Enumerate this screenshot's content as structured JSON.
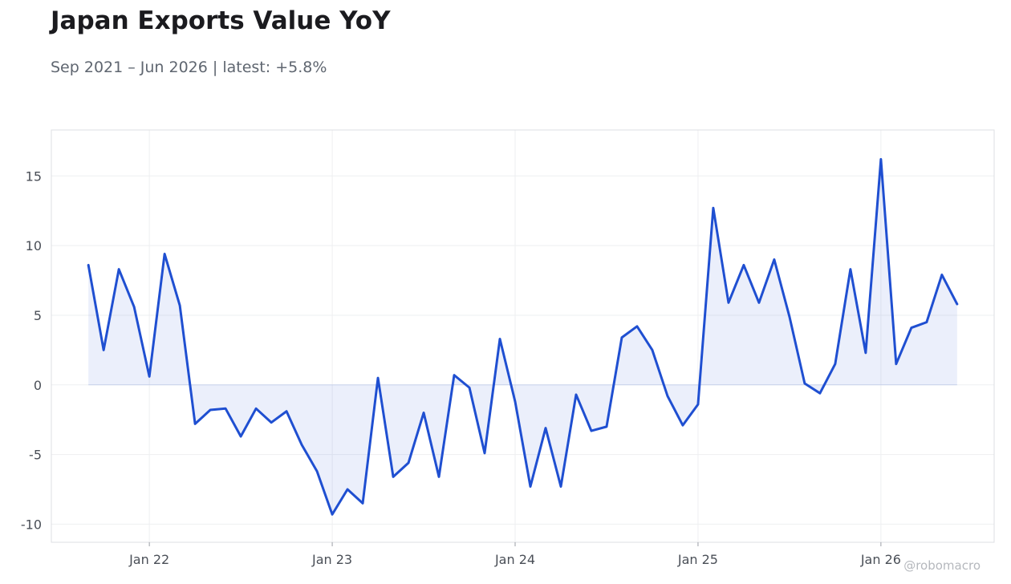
{
  "chart_data": {
    "type": "area",
    "title": "Japan Exports Value YoY",
    "subtitle": "Sep 2021 – Jun 2026 | latest: +5.8%",
    "xlabel": "",
    "ylabel": "",
    "ylim": [
      -11.3,
      18.3
    ],
    "y_ticks": [
      15,
      10,
      5,
      0,
      -5,
      -10
    ],
    "y_tick_labels": [
      "15",
      "10",
      "5",
      "0",
      "-5",
      "-10"
    ],
    "x_ticks": [
      "2022-01",
      "2023-01",
      "2024-01",
      "2025-01",
      "2026-01"
    ],
    "x_tick_labels": [
      "Jan 22",
      "Jan 23",
      "Jan 24",
      "Jan 25",
      "Jan 26"
    ],
    "grid": true,
    "line_color": "#1f4fd1",
    "fill_color": "#1f4fd1",
    "x": [
      "2021-09",
      "2021-10",
      "2021-11",
      "2021-12",
      "2022-01",
      "2022-02",
      "2022-03",
      "2022-04",
      "2022-05",
      "2022-06",
      "2022-07",
      "2022-08",
      "2022-09",
      "2022-10",
      "2022-11",
      "2022-12",
      "2023-01",
      "2023-02",
      "2023-03",
      "2023-04",
      "2023-05",
      "2023-06",
      "2023-07",
      "2023-08",
      "2023-09",
      "2023-10",
      "2023-11",
      "2023-12",
      "2024-01",
      "2024-02",
      "2024-03",
      "2024-04",
      "2024-05",
      "2024-06",
      "2024-07",
      "2024-08",
      "2024-09",
      "2024-10",
      "2024-11",
      "2024-12",
      "2025-01",
      "2025-02",
      "2025-03",
      "2025-04",
      "2025-05",
      "2025-06",
      "2025-07",
      "2025-08",
      "2025-09",
      "2025-10",
      "2025-11",
      "2025-12",
      "2026-01",
      "2026-02",
      "2026-03",
      "2026-04",
      "2026-05",
      "2026-06"
    ],
    "series": [
      {
        "values": [
          8.6,
          2.5,
          8.3,
          5.6,
          0.6,
          9.4,
          5.7,
          -2.8,
          -1.8,
          -1.7,
          -3.7,
          -1.7,
          -2.7,
          -1.9,
          -4.3,
          -6.2,
          -9.3,
          -7.5,
          -8.5,
          0.5,
          -6.6,
          -5.6,
          -2.0,
          -6.6,
          0.7,
          -0.2,
          -4.9,
          3.3,
          -1.2,
          -7.3,
          -3.1,
          -7.3,
          -0.7,
          -3.3,
          -3.0,
          3.4,
          4.2,
          2.5,
          -0.8,
          -2.9,
          -1.4,
          12.7,
          5.9,
          8.6,
          5.9,
          9.0,
          4.9,
          0.1,
          -0.6,
          1.5,
          8.3,
          2.3,
          16.2,
          1.5,
          4.1,
          4.5,
          7.9,
          5.8
        ]
      }
    ]
  },
  "watermark": "@robomacro"
}
